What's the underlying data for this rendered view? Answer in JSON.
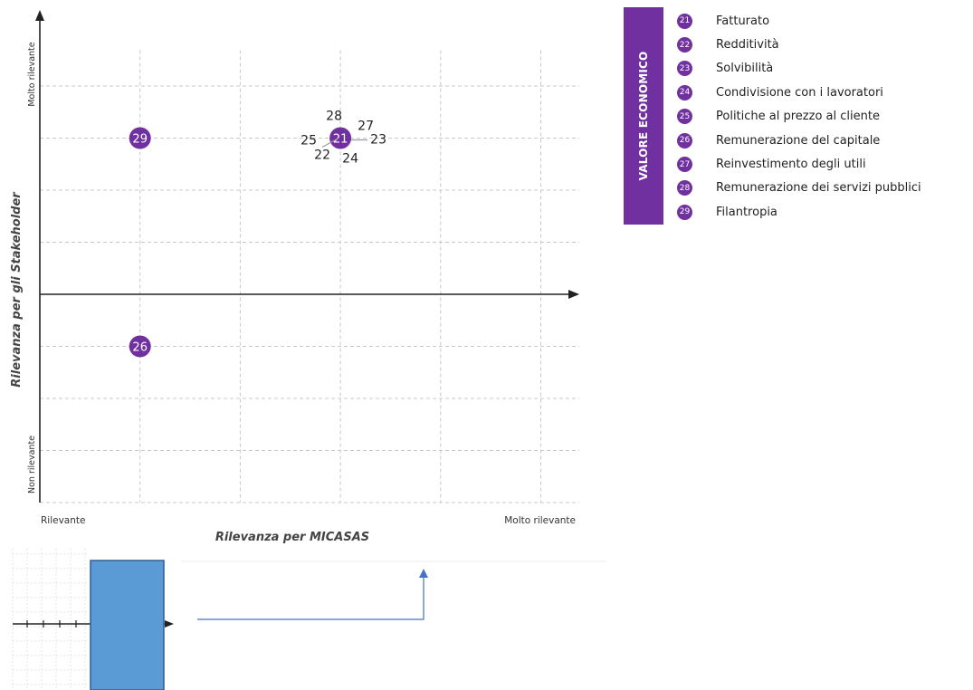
{
  "chart_data": {
    "type": "scatter",
    "xlabel": "Rilevanza per MICASAS",
    "ylabel": "Rilevanza per gli Stakeholder",
    "x_tick_low": "Rilevante",
    "x_tick_high": "Molto rilevante",
    "y_tick_low": "Non rilevante",
    "y_tick_high": "Molto rilevante",
    "xlim": [
      0,
      5.4
    ],
    "ylim": [
      -4,
      5
    ],
    "grid": true,
    "points": [
      {
        "id": "29",
        "x": 1,
        "y": 3,
        "style": "marker"
      },
      {
        "id": "26",
        "x": 1,
        "y": -1,
        "style": "marker"
      },
      {
        "id": "21",
        "x": 3,
        "y": 3,
        "style": "marker"
      },
      {
        "id": "22",
        "x": 3,
        "y": 3,
        "style": "label",
        "offset": "bottom-left"
      },
      {
        "id": "23",
        "x": 3,
        "y": 3,
        "style": "label",
        "offset": "right"
      },
      {
        "id": "24",
        "x": 3,
        "y": 3,
        "style": "label",
        "offset": "bottom"
      },
      {
        "id": "25",
        "x": 3,
        "y": 3,
        "style": "label",
        "offset": "left"
      },
      {
        "id": "27",
        "x": 3,
        "y": 3,
        "style": "label",
        "offset": "top-right"
      },
      {
        "id": "28",
        "x": 3,
        "y": 3,
        "style": "label",
        "offset": "top"
      }
    ]
  },
  "legend": {
    "category": "VALORE ECONOMICO",
    "items": [
      {
        "id": "21",
        "label": "Fatturato"
      },
      {
        "id": "22",
        "label": "Redditività"
      },
      {
        "id": "23",
        "label": "Solvibilità"
      },
      {
        "id": "24",
        "label": "Condivisione con i lavoratori"
      },
      {
        "id": "25",
        "label": "Politiche al prezzo al cliente"
      },
      {
        "id": "26",
        "label": "Remunerazione del capitale"
      },
      {
        "id": "27",
        "label": "Reinvestimento degli utili"
      },
      {
        "id": "28",
        "label": "Remunerazione dei servizi pubblici"
      },
      {
        "id": "29",
        "label": "Filantropia"
      }
    ]
  },
  "colors": {
    "marker": "#7030a0",
    "grid": "#c8c8c8",
    "axis": "#222222",
    "mini_box": "#5b9bd5",
    "mini_arrow": "#4472c4"
  }
}
